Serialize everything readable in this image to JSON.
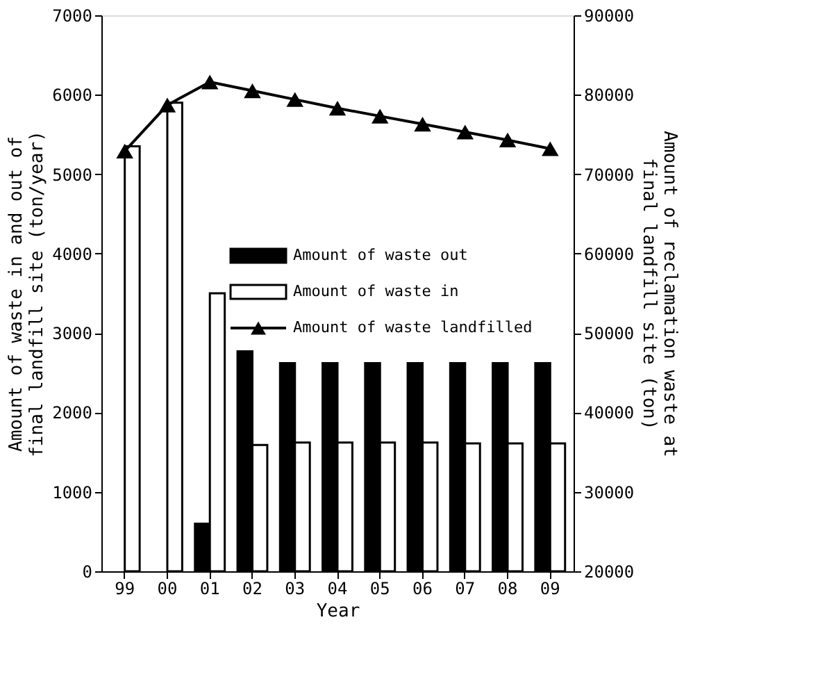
{
  "chart_data": {
    "type": "bar",
    "categories": [
      "99",
      "00",
      "01",
      "02",
      "03",
      "04",
      "05",
      "06",
      "07",
      "08",
      "09"
    ],
    "xlabel": "Year",
    "ylabel": "Amount of waste in and out of\nfinal landfill site (ton/year)",
    "y2label": "Amount of reclamation waste at\nfinal landfill site (ton)",
    "series": [
      {
        "name": "Amount of waste out",
        "color": "#000000",
        "values": [
          null,
          null,
          600,
          2770,
          2620,
          2620,
          2620,
          2620,
          2620,
          2620,
          2620
        ]
      },
      {
        "name": "Amount of waste in",
        "color": "#ffffff",
        "values": [
          5350,
          5900,
          3500,
          1590,
          1620,
          1620,
          1620,
          1620,
          1610,
          1610,
          1610
        ]
      },
      {
        "name": "Amount of waste landfilled",
        "type": "line",
        "axis": "y2",
        "color": "#000000",
        "marker": "triangle",
        "values": [
          72900,
          78700,
          81600,
          80500,
          79400,
          78300,
          77300,
          76300,
          75300,
          74300,
          73200
        ]
      }
    ],
    "ylim": [
      0,
      7000
    ],
    "yticks": [
      0,
      1000,
      2000,
      3000,
      4000,
      5000,
      6000,
      7000
    ],
    "y2lim": [
      20000,
      90000
    ],
    "y2ticks": [
      20000,
      30000,
      40000,
      50000,
      60000,
      70000,
      80000,
      90000
    ],
    "grid": false,
    "legend": "right"
  }
}
